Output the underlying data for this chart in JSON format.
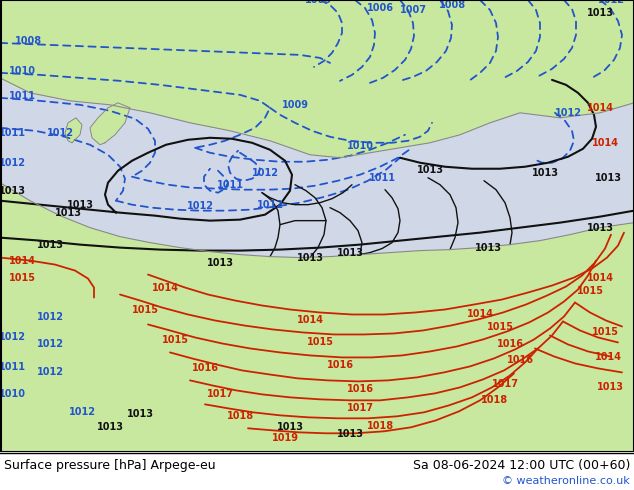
{
  "title_left": "Surface pressure [hPa] Arpege-eu",
  "title_right": "Sa 08-06-2024 12:00 UTC (00+60)",
  "watermark": "© weatheronline.co.uk",
  "sea_color": "#d0d8e8",
  "land_color": "#c8e8a0",
  "figsize": [
    6.34,
    4.9
  ],
  "dpi": 100,
  "blue": "#2255cc",
  "red": "#cc2200",
  "black": "#111111",
  "footer_bg": "#ffffff"
}
